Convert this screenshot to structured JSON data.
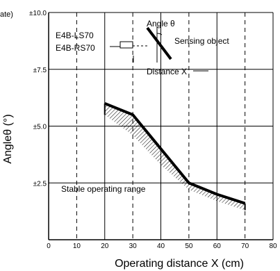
{
  "chart_data": {
    "type": "area",
    "title": "",
    "top_left_fragment": "ate)",
    "xlabel": "Operating distance X (cm)",
    "ylabel": "Angleθ (°)",
    "xlim": [
      0,
      80
    ],
    "ylim": [
      0,
      10
    ],
    "x_ticks": [
      0,
      10,
      20,
      30,
      40,
      50,
      60,
      70,
      80
    ],
    "y_ticks": [
      {
        "value": 2.5,
        "label": "±2.5"
      },
      {
        "value": 5.0,
        "label": "±5.0"
      },
      {
        "value": 7.5,
        "label": "±7.5"
      },
      {
        "value": 10.0,
        "label": "±10.0"
      }
    ],
    "grid": true,
    "boundary_line": {
      "x": [
        20,
        30,
        40,
        50,
        60,
        70
      ],
      "y": [
        6.0,
        5.5,
        4.0,
        2.5,
        2.0,
        1.6
      ]
    },
    "lower_edge": {
      "x": [
        20,
        30,
        40,
        50,
        60,
        70
      ],
      "y": [
        5.5,
        4.6,
        3.3,
        2.2,
        1.7,
        1.3
      ]
    },
    "annotations": {
      "stable_range": "Stable operating range",
      "model_1": "E4B-LS70",
      "model_2": "E4B-RS70",
      "angle_label": "Angle θ",
      "sensing_object": "Sensing object",
      "distance_label": "Distance X"
    }
  }
}
